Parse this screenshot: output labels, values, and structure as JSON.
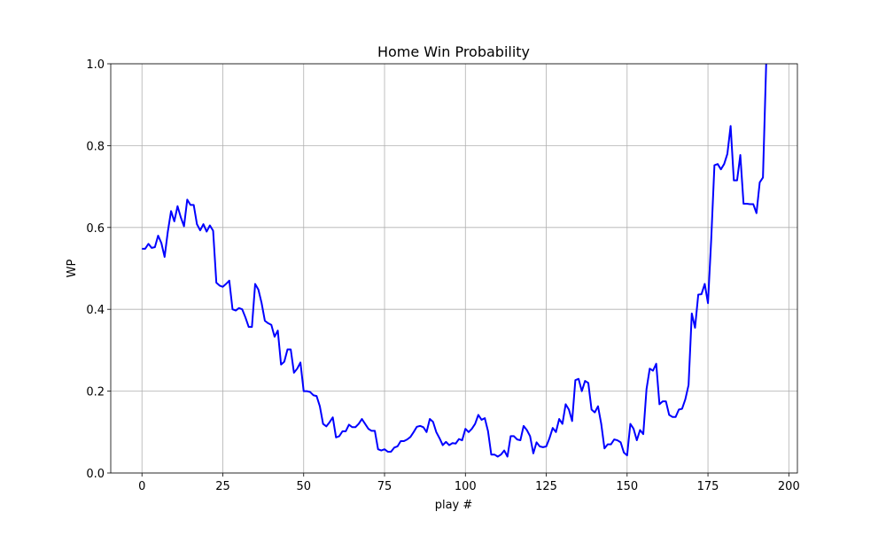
{
  "chart_data": {
    "type": "line",
    "title": "Home Win Probability",
    "x_label": "play #",
    "y_label": "WP",
    "color": "#0000ff",
    "grid": true,
    "xlim": [
      -9.65,
      202.65
    ],
    "ylim": [
      0,
      1
    ],
    "xticks": [
      0,
      25,
      50,
      75,
      100,
      125,
      150,
      175,
      200
    ],
    "yticks": [
      {
        "value": 0,
        "label": "0.0"
      },
      0.2,
      0.4,
      0.6,
      0.8,
      {
        "value": 1,
        "label": "1.0"
      }
    ],
    "x": [
      0,
      1,
      2,
      3,
      4,
      5,
      6,
      7,
      8,
      9,
      10,
      11,
      12,
      13,
      14,
      15,
      16,
      17,
      18,
      19,
      20,
      21,
      22,
      23,
      24,
      25,
      26,
      27,
      28,
      29,
      30,
      31,
      32,
      33,
      34,
      35,
      36,
      37,
      38,
      39,
      40,
      41,
      42,
      43,
      44,
      45,
      46,
      47,
      48,
      49,
      50,
      51,
      52,
      53,
      54,
      55,
      56,
      57,
      58,
      59,
      60,
      61,
      62,
      63,
      64,
      65,
      66,
      67,
      68,
      69,
      70,
      71,
      72,
      73,
      74,
      75,
      76,
      77,
      78,
      79,
      80,
      81,
      82,
      83,
      84,
      85,
      86,
      87,
      88,
      89,
      90,
      91,
      92,
      93,
      94,
      95,
      96,
      97,
      98,
      99,
      100,
      101,
      102,
      103,
      104,
      105,
      106,
      107,
      108,
      109,
      110,
      111,
      112,
      113,
      114,
      115,
      116,
      117,
      118,
      119,
      120,
      121,
      122,
      123,
      124,
      125,
      126,
      127,
      128,
      129,
      130,
      131,
      132,
      133,
      134,
      135,
      136,
      137,
      138,
      139,
      140,
      141,
      142,
      143,
      144,
      145,
      146,
      147,
      148,
      149,
      150,
      151,
      152,
      153,
      154,
      155,
      156,
      157,
      158,
      159,
      160,
      161,
      162,
      163,
      164,
      165,
      166,
      167,
      168,
      169,
      170,
      171,
      172,
      173,
      174,
      175,
      176,
      177,
      178,
      179,
      180,
      181,
      182,
      183,
      184,
      185,
      186,
      187,
      188,
      189,
      190,
      191,
      192,
      193
    ],
    "values": [
      0.548,
      0.548,
      0.56,
      0.55,
      0.552,
      0.58,
      0.562,
      0.528,
      0.59,
      0.64,
      0.615,
      0.652,
      0.625,
      0.603,
      0.668,
      0.655,
      0.655,
      0.608,
      0.593,
      0.608,
      0.59,
      0.605,
      0.592,
      0.465,
      0.458,
      0.455,
      0.462,
      0.47,
      0.4,
      0.397,
      0.403,
      0.4,
      0.38,
      0.357,
      0.357,
      0.462,
      0.448,
      0.415,
      0.372,
      0.366,
      0.362,
      0.333,
      0.348,
      0.265,
      0.272,
      0.302,
      0.302,
      0.245,
      0.255,
      0.27,
      0.2,
      0.2,
      0.198,
      0.19,
      0.188,
      0.163,
      0.12,
      0.114,
      0.124,
      0.136,
      0.087,
      0.09,
      0.102,
      0.102,
      0.118,
      0.112,
      0.112,
      0.12,
      0.132,
      0.12,
      0.108,
      0.103,
      0.103,
      0.058,
      0.055,
      0.058,
      0.052,
      0.052,
      0.062,
      0.065,
      0.078,
      0.078,
      0.082,
      0.088,
      0.1,
      0.113,
      0.115,
      0.112,
      0.1,
      0.132,
      0.125,
      0.1,
      0.085,
      0.068,
      0.076,
      0.068,
      0.073,
      0.072,
      0.083,
      0.08,
      0.108,
      0.1,
      0.108,
      0.12,
      0.142,
      0.13,
      0.134,
      0.102,
      0.045,
      0.045,
      0.04,
      0.045,
      0.055,
      0.04,
      0.09,
      0.09,
      0.082,
      0.08,
      0.115,
      0.105,
      0.09,
      0.048,
      0.075,
      0.065,
      0.063,
      0.065,
      0.085,
      0.11,
      0.1,
      0.132,
      0.12,
      0.168,
      0.155,
      0.127,
      0.227,
      0.23,
      0.2,
      0.225,
      0.22,
      0.155,
      0.148,
      0.163,
      0.12,
      0.06,
      0.07,
      0.07,
      0.082,
      0.08,
      0.075,
      0.05,
      0.043,
      0.12,
      0.108,
      0.08,
      0.105,
      0.095,
      0.205,
      0.255,
      0.25,
      0.267,
      0.168,
      0.175,
      0.175,
      0.142,
      0.137,
      0.137,
      0.155,
      0.157,
      0.18,
      0.215,
      0.39,
      0.355,
      0.436,
      0.437,
      0.462,
      0.415,
      0.57,
      0.752,
      0.755,
      0.742,
      0.755,
      0.78,
      0.848,
      0.715,
      0.715,
      0.777,
      0.658,
      0.658,
      0.657,
      0.657,
      0.635,
      0.71,
      0.722,
      1.0
    ]
  }
}
